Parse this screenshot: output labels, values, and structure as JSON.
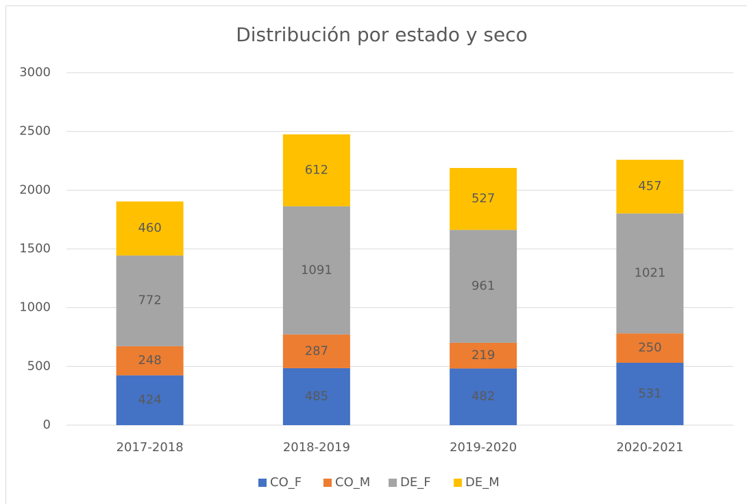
{
  "chart_data": {
    "type": "stacked_bar",
    "title": "Distribución por estado y seco",
    "categories": [
      "2017-2018",
      "2018-2019",
      "2019-2020",
      "2020-2021"
    ],
    "series": [
      {
        "name": "CO_F",
        "color": "#4472c4",
        "values": [
          424,
          485,
          482,
          531
        ]
      },
      {
        "name": "CO_M",
        "color": "#ed7d31",
        "values": [
          248,
          287,
          219,
          250
        ]
      },
      {
        "name": "DE_F",
        "color": "#a5a5a5",
        "values": [
          772,
          1091,
          961,
          1021
        ]
      },
      {
        "name": "DE_M",
        "color": "#ffc000",
        "values": [
          460,
          612,
          527,
          457
        ]
      }
    ],
    "ylim": [
      0,
      3000
    ],
    "yticks": [
      0,
      500,
      1000,
      1500,
      2000,
      2500,
      3000
    ],
    "grid": true,
    "legend": "bottom"
  }
}
